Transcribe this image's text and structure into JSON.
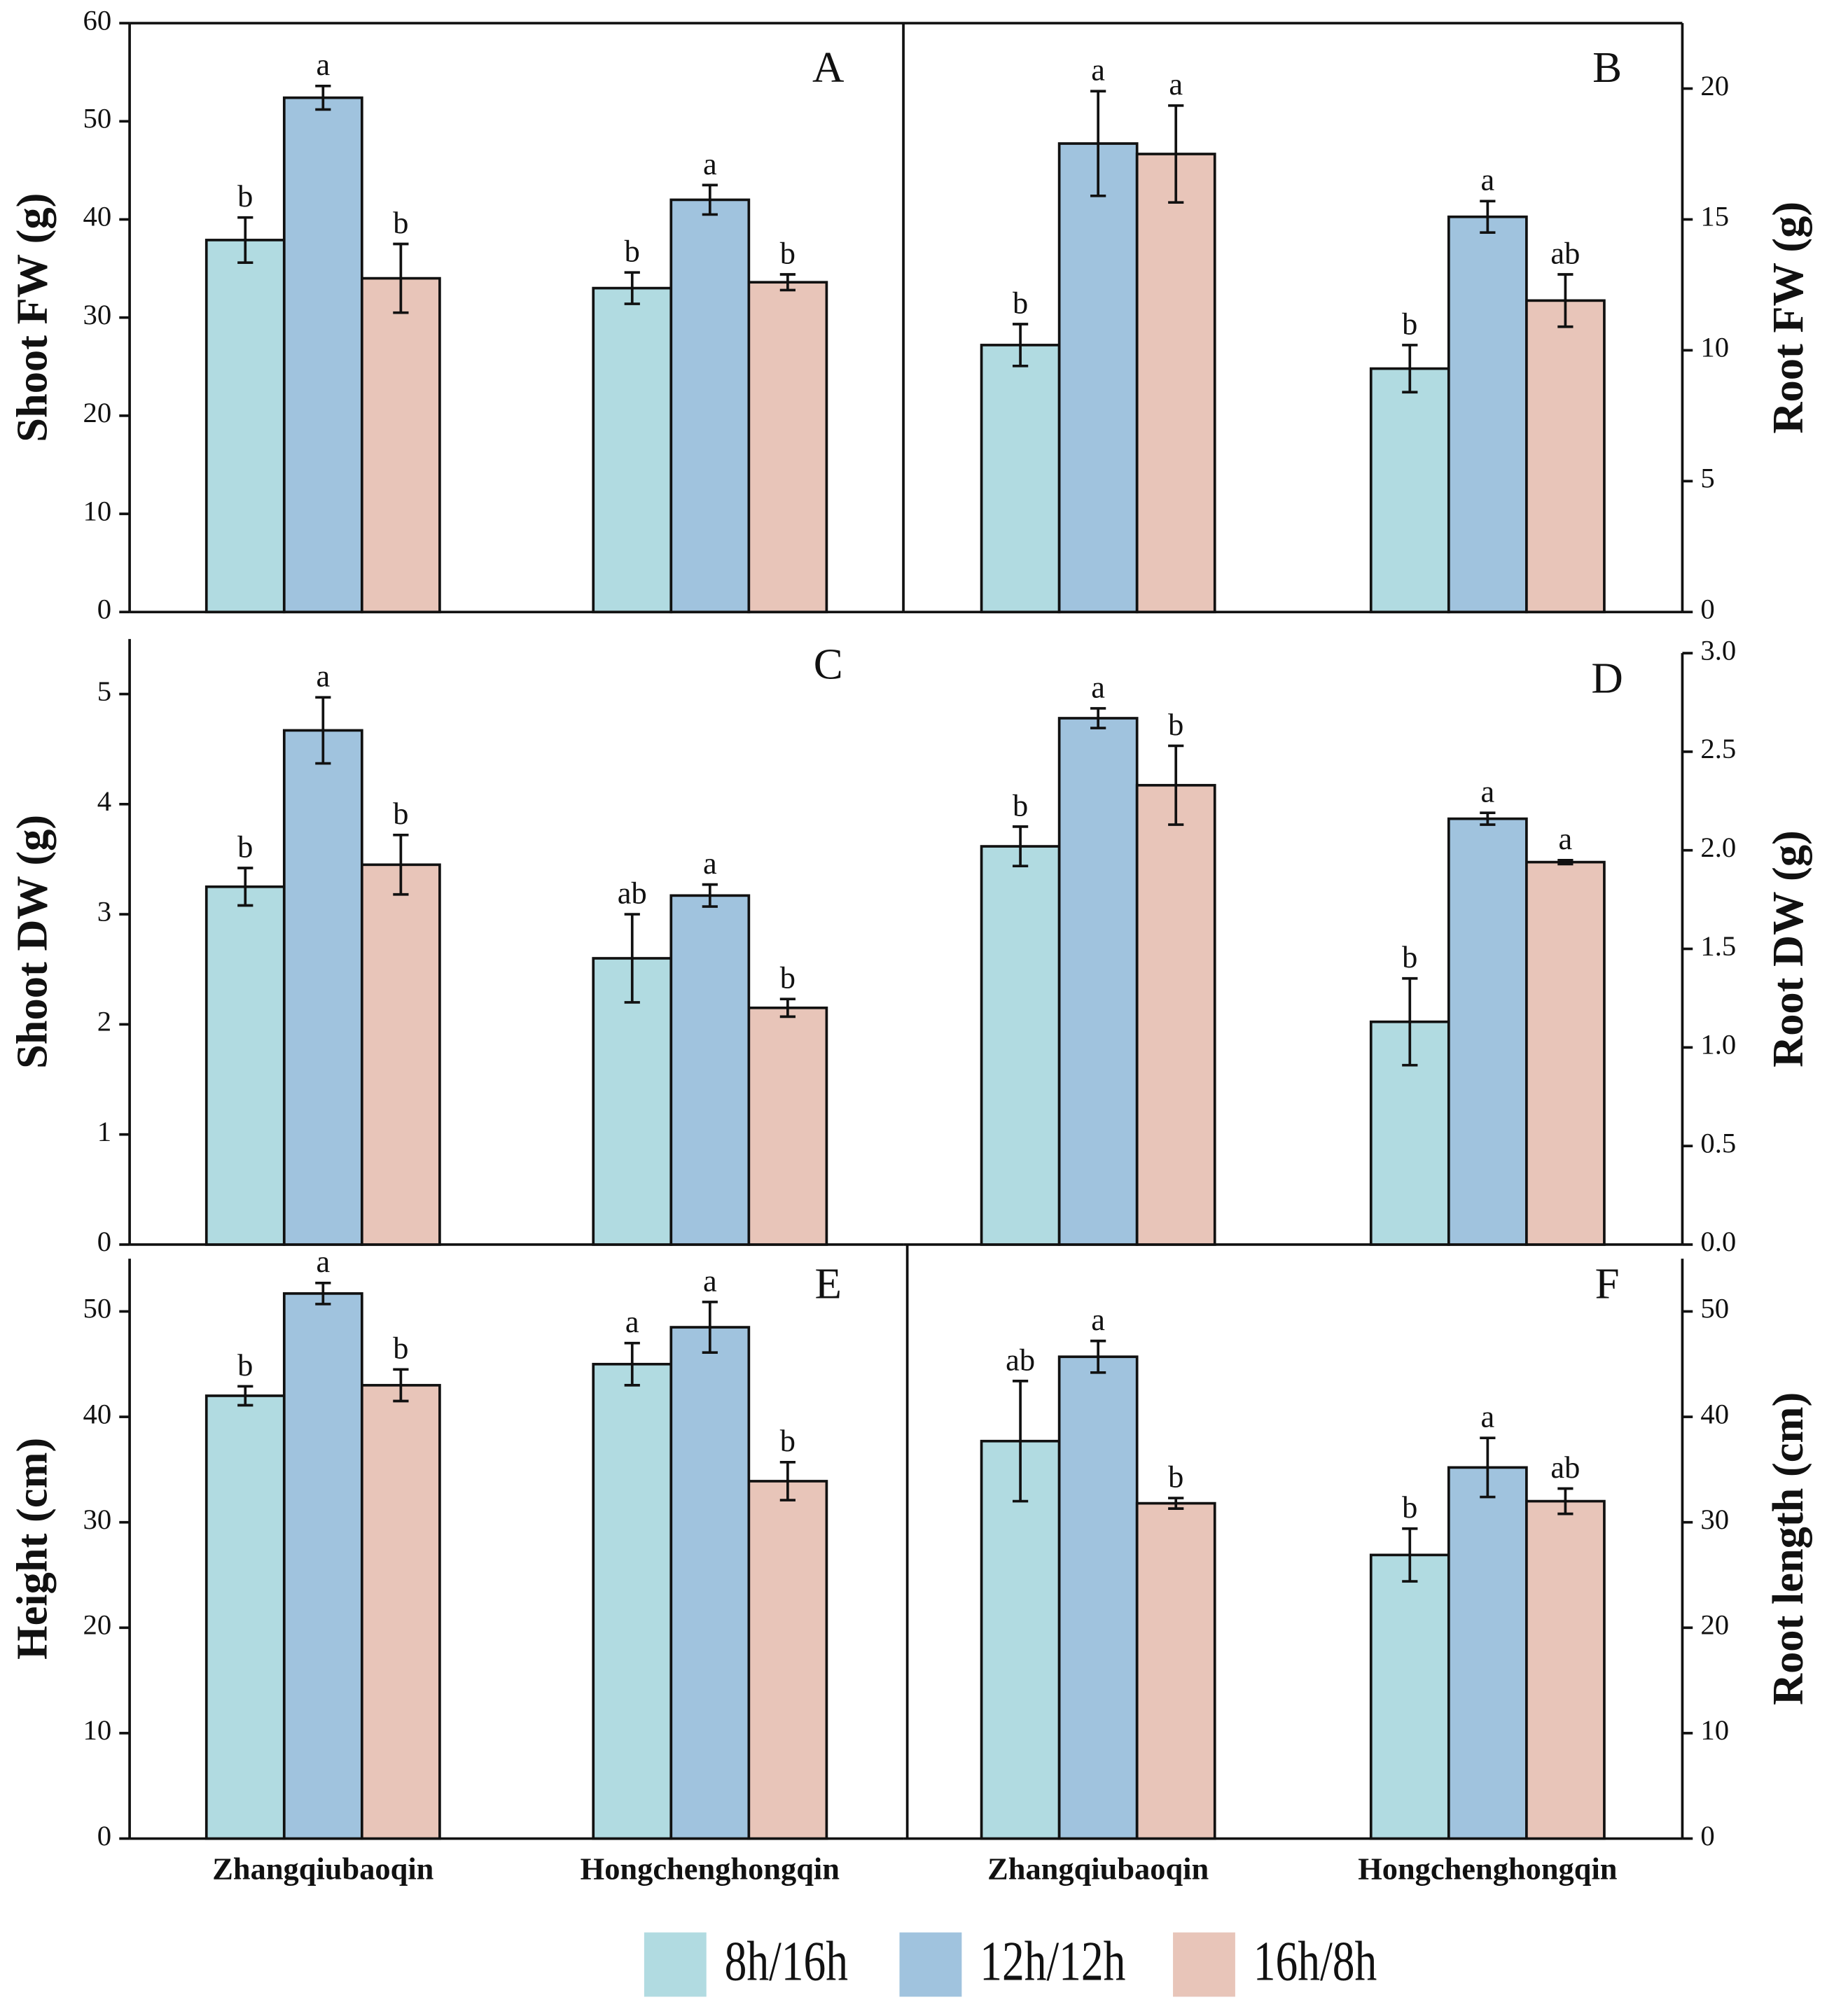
{
  "legend": [
    {
      "name": "8h/16h",
      "color": "#b1dbe1"
    },
    {
      "name": "12h/12h",
      "color": "#a0c3de"
    },
    {
      "name": "16h/8h",
      "color": "#e8c5b9"
    }
  ],
  "chart_data": [
    {
      "type": "bar",
      "panel_label": "A",
      "ylabel": "Shoot FW (g)",
      "yaxis": "left",
      "ylim": [
        0,
        60
      ],
      "yticks": [
        0,
        10,
        20,
        30,
        40,
        50,
        60
      ],
      "series": [
        {
          "values": [
            37.9,
            33
          ],
          "errors": [
            2.3,
            1.6
          ],
          "letters": [
            "b",
            "b"
          ]
        },
        {
          "values": [
            52.4,
            42
          ],
          "errors": [
            1.2,
            1.5
          ],
          "letters": [
            "a",
            "a"
          ]
        },
        {
          "values": [
            34,
            33.6
          ],
          "errors": [
            3.5,
            0.8
          ],
          "letters": [
            "b",
            "b"
          ]
        }
      ]
    },
    {
      "type": "bar",
      "panel_label": "B",
      "ylabel": "Root FW (g)",
      "yaxis": "right",
      "ylim": [
        0,
        22.5
      ],
      "yticks": [
        0,
        5,
        10,
        15,
        20
      ],
      "series": [
        {
          "values": [
            10.2,
            9.3
          ],
          "errors": [
            0.8,
            0.9
          ],
          "letters": [
            "b",
            "b"
          ]
        },
        {
          "values": [
            17.9,
            15.1
          ],
          "errors": [
            2,
            0.6
          ],
          "letters": [
            "a",
            "a"
          ]
        },
        {
          "values": [
            17.5,
            11.9
          ],
          "errors": [
            1.85,
            1
          ],
          "letters": [
            "a",
            "ab"
          ]
        }
      ]
    },
    {
      "type": "bar",
      "panel_label": "C",
      "ylabel": "Shoot DW (g)",
      "yaxis": "left",
      "ylim": [
        0,
        5.5
      ],
      "yticks": [
        0,
        1,
        2,
        3,
        4,
        5
      ],
      "series": [
        {
          "values": [
            3.25,
            2.6
          ],
          "errors": [
            0.17,
            0.4
          ],
          "letters": [
            "b",
            "ab"
          ]
        },
        {
          "values": [
            4.67,
            3.17
          ],
          "errors": [
            0.3,
            0.1
          ],
          "letters": [
            "a",
            "a"
          ]
        },
        {
          "values": [
            3.45,
            2.15
          ],
          "errors": [
            0.27,
            0.08
          ],
          "letters": [
            "b",
            "b"
          ]
        }
      ]
    },
    {
      "type": "bar",
      "panel_label": "D",
      "ylabel": "Root DW (g)",
      "yaxis": "right",
      "ylim": [
        0,
        3
      ],
      "yticks": [
        {
          "value": 0,
          "label": "0.0"
        },
        0.5,
        {
          "value": 1,
          "label": "1.0"
        },
        1.5,
        {
          "value": 2,
          "label": "2.0"
        },
        2.5,
        {
          "value": 3,
          "label": "3.0"
        }
      ],
      "series": [
        {
          "values": [
            2.02,
            1.13
          ],
          "errors": [
            0.1,
            0.22
          ],
          "letters": [
            "b",
            "b"
          ]
        },
        {
          "values": [
            2.67,
            2.16
          ],
          "errors": [
            0.05,
            0.03
          ],
          "letters": [
            "a",
            "a"
          ]
        },
        {
          "values": [
            2.33,
            1.94
          ],
          "errors": [
            0.2,
            0.01
          ],
          "letters": [
            "b",
            "a"
          ]
        }
      ]
    },
    {
      "type": "bar",
      "panel_label": "E",
      "ylabel": "Height (cm)",
      "yaxis": "left",
      "ylim": [
        0,
        55
      ],
      "yticks": [
        0,
        10,
        20,
        30,
        40,
        50
      ],
      "categories": [
        "Zhangqiubaoqin",
        "Hongchenghongqin"
      ],
      "series": [
        {
          "values": [
            42,
            45
          ],
          "errors": [
            0.9,
            2
          ],
          "letters": [
            "b",
            "a"
          ]
        },
        {
          "values": [
            51.7,
            48.5
          ],
          "errors": [
            1,
            2.4
          ],
          "letters": [
            "a",
            "a"
          ]
        },
        {
          "values": [
            43,
            33.9
          ],
          "errors": [
            1.5,
            1.8
          ],
          "letters": [
            "b",
            "b"
          ]
        }
      ]
    },
    {
      "type": "bar",
      "panel_label": "F",
      "ylabel": "Root length (cm)",
      "yaxis": "right",
      "ylim": [
        0,
        55
      ],
      "yticks": [
        0,
        10,
        20,
        30,
        40,
        50
      ],
      "categories": [
        "Zhangqiubaoqin",
        "Hongchenghongqin"
      ],
      "series": [
        {
          "values": [
            37.7,
            26.9
          ],
          "errors": [
            5.7,
            2.5
          ],
          "letters": [
            "ab",
            "b"
          ]
        },
        {
          "values": [
            45.7,
            35.2
          ],
          "errors": [
            1.5,
            2.8
          ],
          "letters": [
            "a",
            "a"
          ]
        },
        {
          "values": [
            31.8,
            32
          ],
          "errors": [
            0.5,
            1.2
          ],
          "letters": [
            "b",
            "ab"
          ]
        }
      ]
    }
  ]
}
